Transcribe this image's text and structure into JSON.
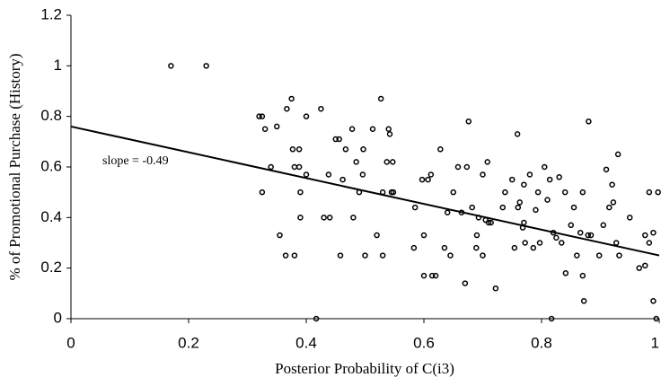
{
  "chart_data": {
    "type": "scatter",
    "xlabel": "Posterior Probability of C(i3)",
    "ylabel": "% of Promotional Purchase (History)",
    "annotation": "slope = -0.49",
    "xlim": [
      0,
      1
    ],
    "ylim": [
      0,
      1.2
    ],
    "xticks": [
      0,
      0.2,
      0.4,
      0.6,
      0.8,
      1
    ],
    "yticks": [
      0,
      0.2,
      0.4,
      0.6,
      0.8,
      1,
      1.2
    ],
    "color": "#000000",
    "trendline": {
      "x": [
        0,
        1
      ],
      "y": [
        0.76,
        0.25
      ]
    },
    "x": [
      0.17,
      0.23,
      0.32,
      0.325,
      0.325,
      0.33,
      0.34,
      0.35,
      0.355,
      0.365,
      0.367,
      0.375,
      0.377,
      0.38,
      0.38,
      0.388,
      0.388,
      0.39,
      0.39,
      0.4,
      0.4,
      0.417,
      0.425,
      0.43,
      0.438,
      0.44,
      0.45,
      0.456,
      0.458,
      0.462,
      0.467,
      0.478,
      0.48,
      0.485,
      0.49,
      0.496,
      0.497,
      0.5,
      0.513,
      0.52,
      0.527,
      0.53,
      0.53,
      0.537,
      0.54,
      0.542,
      0.545,
      0.547,
      0.548,
      0.583,
      0.585,
      0.597,
      0.6,
      0.6,
      0.607,
      0.612,
      0.614,
      0.62,
      0.628,
      0.635,
      0.64,
      0.645,
      0.65,
      0.658,
      0.664,
      0.67,
      0.673,
      0.676,
      0.682,
      0.689,
      0.69,
      0.693,
      0.7,
      0.7,
      0.705,
      0.708,
      0.71,
      0.714,
      0.722,
      0.734,
      0.738,
      0.75,
      0.754,
      0.759,
      0.76,
      0.763,
      0.768,
      0.77,
      0.77,
      0.772,
      0.78,
      0.786,
      0.79,
      0.794,
      0.797,
      0.805,
      0.81,
      0.814,
      0.817,
      0.82,
      0.825,
      0.83,
      0.834,
      0.84,
      0.841,
      0.85,
      0.855,
      0.86,
      0.866,
      0.87,
      0.87,
      0.872,
      0.879,
      0.88,
      0.884,
      0.898,
      0.905,
      0.91,
      0.915,
      0.92,
      0.922,
      0.927,
      0.93,
      0.932,
      0.95,
      0.966,
      0.976,
      0.976,
      0.983,
      0.983,
      0.99,
      0.99,
      0.995,
      0.998
    ],
    "values": [
      1.0,
      1.0,
      0.8,
      0.8,
      0.5,
      0.75,
      0.6,
      0.76,
      0.33,
      0.25,
      0.83,
      0.87,
      0.67,
      0.6,
      0.25,
      0.6,
      0.67,
      0.4,
      0.5,
      0.8,
      0.57,
      0,
      0.83,
      0.4,
      0.57,
      0.4,
      0.71,
      0.71,
      0.25,
      0.55,
      0.67,
      0.75,
      0.4,
      0.62,
      0.5,
      0.57,
      0.67,
      0.25,
      0.75,
      0.33,
      0.87,
      0.5,
      0.25,
      0.62,
      0.75,
      0.73,
      0.5,
      0.62,
      0.5,
      0.28,
      0.44,
      0.55,
      0.17,
      0.33,
      0.55,
      0.57,
      0.17,
      0.17,
      0.67,
      0.28,
      0.42,
      0.25,
      0.5,
      0.6,
      0.42,
      0.14,
      0.6,
      0.78,
      0.44,
      0.28,
      0.33,
      0.4,
      0.25,
      0.57,
      0.39,
      0.62,
      0.38,
      0.38,
      0.12,
      0.44,
      0.5,
      0.55,
      0.28,
      0.73,
      0.44,
      0.46,
      0.36,
      0.38,
      0.53,
      0.3,
      0.57,
      0.28,
      0.43,
      0.5,
      0.3,
      0.6,
      0.47,
      0.55,
      0,
      0.34,
      0.32,
      0.56,
      0.3,
      0.5,
      0.18,
      0.37,
      0.44,
      0.25,
      0.34,
      0.17,
      0.5,
      0.07,
      0.33,
      0.78,
      0.33,
      0.25,
      0.37,
      0.59,
      0.44,
      0.53,
      0.46,
      0.3,
      0.65,
      0.25,
      0.4,
      0.2,
      0.33,
      0.21,
      0.3,
      0.5,
      0.34,
      0.07,
      0,
      0.5
    ]
  }
}
